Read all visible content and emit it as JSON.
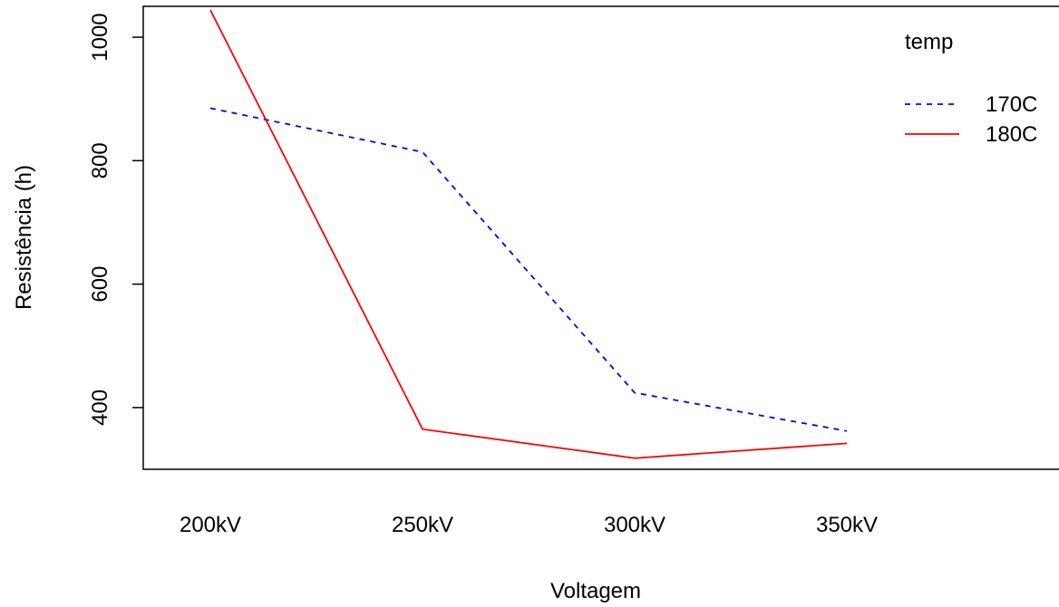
{
  "chart_data": {
    "type": "line",
    "title": "",
    "xlabel": "Voltagem",
    "ylabel": "Resistência (h)",
    "categories": [
      "200kV",
      "250kV",
      "300kV",
      "350kV"
    ],
    "yticks": [
      "400",
      "600",
      "800",
      "1000"
    ],
    "ylim": [
      300,
      1050
    ],
    "grid": false,
    "legend": {
      "title": "temp",
      "position": "top-right"
    },
    "series": [
      {
        "name": "170C",
        "values": [
          885,
          814,
          424,
          362
        ],
        "color": "#0000ff",
        "line_style": "dashed"
      },
      {
        "name": "180C",
        "values": [
          1044,
          365,
          318,
          342
        ],
        "color": "#ff0000",
        "line_style": "solid"
      }
    ]
  }
}
